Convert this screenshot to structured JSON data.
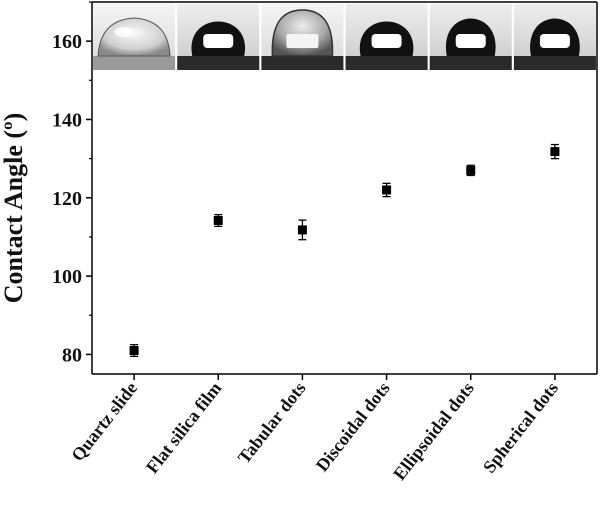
{
  "chart_data": {
    "type": "scatter",
    "title": "",
    "xlabel": "",
    "ylabel": "Contact Angle (º)",
    "ylim": [
      75,
      170
    ],
    "yticks": [
      80,
      100,
      120,
      140,
      160
    ],
    "grid": false,
    "legend": "none",
    "marker": "square",
    "marker_color": "#000000",
    "categories": [
      "Quartz slide",
      "Flat silica film",
      "Tabular dots",
      "Discoidal dots",
      "Ellipsoidal dots",
      "Spherical dots"
    ],
    "series": [
      {
        "values": [
          81,
          114.2,
          111.8,
          122,
          127,
          131.8
        ],
        "errors": [
          1.5,
          1.5,
          2.5,
          1.7,
          1.3,
          1.8
        ]
      }
    ],
    "insets": [
      {
        "category": "Quartz slide",
        "icon": "droplet-photo-flat"
      },
      {
        "category": "Flat silica film",
        "icon": "droplet-photo-dark"
      },
      {
        "category": "Tabular dots",
        "icon": "droplet-photo-medium"
      },
      {
        "category": "Discoidal dots",
        "icon": "droplet-photo-dark"
      },
      {
        "category": "Ellipsoidal dots",
        "icon": "droplet-photo-dark-tall"
      },
      {
        "category": "Spherical dots",
        "icon": "droplet-photo-dark-tall"
      }
    ]
  }
}
